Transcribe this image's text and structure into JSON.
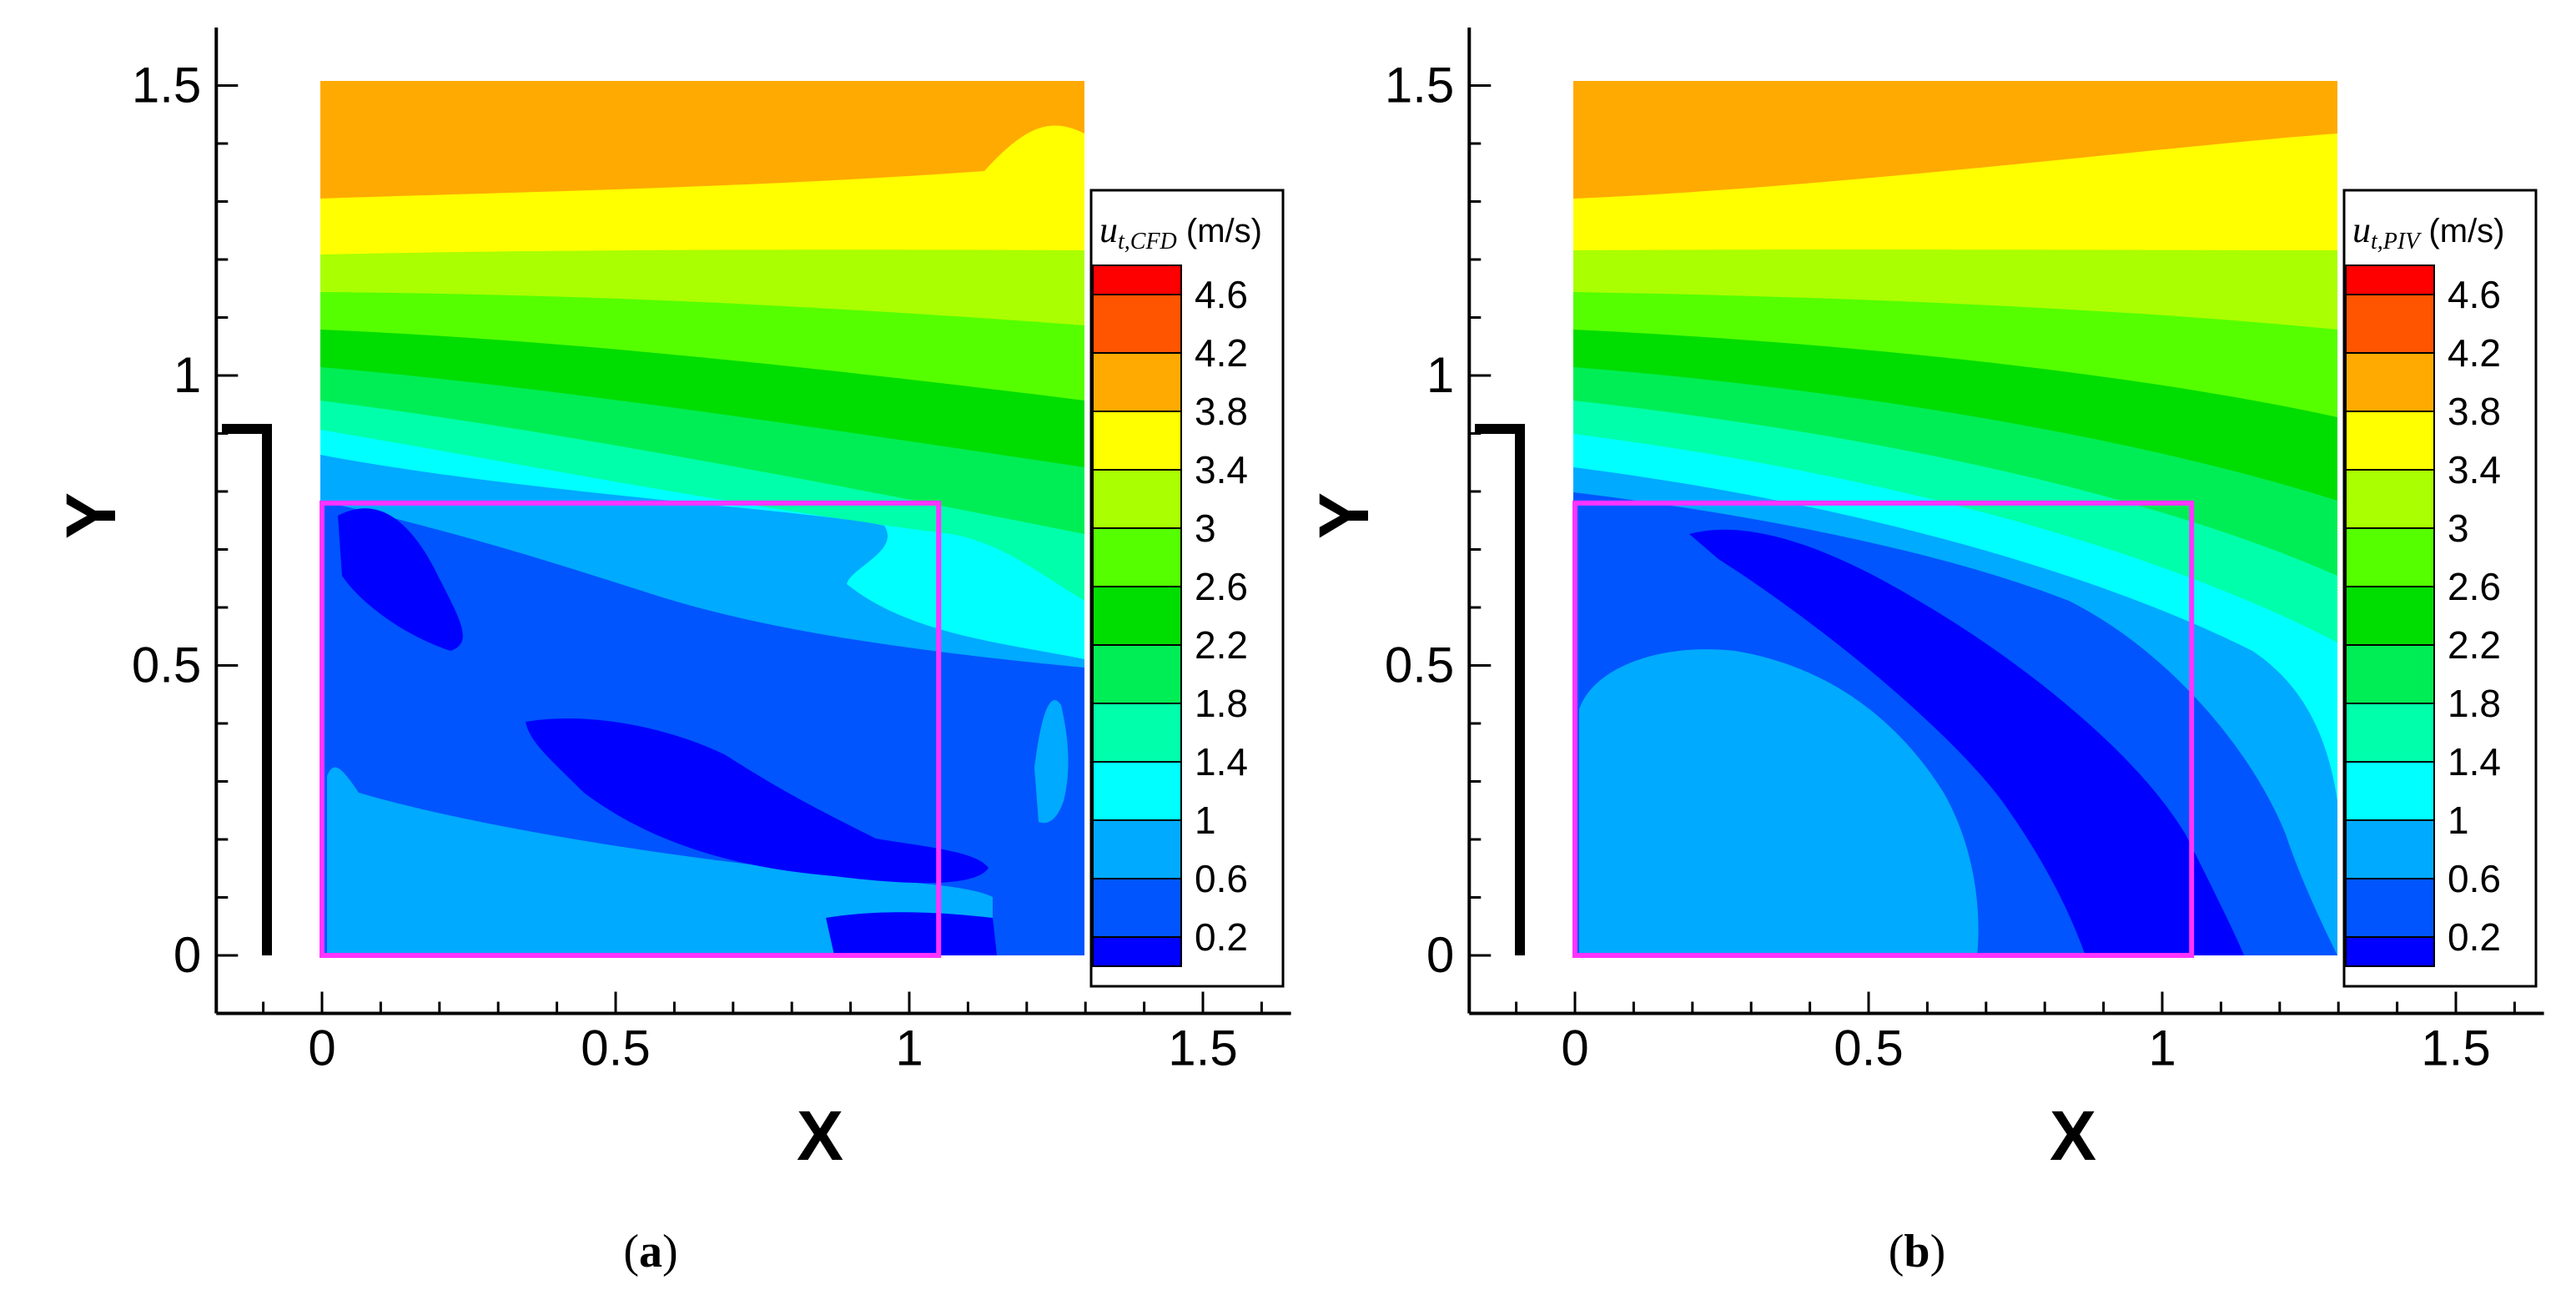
{
  "chart_data": [
    {
      "type": "contour",
      "panel_label": "a",
      "xlabel": "X",
      "ylabel": "Y",
      "xlim": [
        -0.18,
        1.65
      ],
      "ylim": [
        -0.1,
        1.6
      ],
      "x_ticks": [
        "0",
        "0.5",
        "1",
        "1.5"
      ],
      "x_tick_values": [
        0,
        0.5,
        1,
        1.5
      ],
      "y_ticks": [
        "0",
        "0.5",
        "1",
        "1.5"
      ],
      "y_tick_values": [
        0,
        0.5,
        1,
        1.5
      ],
      "domain": {
        "x": [
          0,
          1.31
        ],
        "y": [
          0,
          1.5
        ]
      },
      "highlight_box": {
        "x": [
          0,
          1.05
        ],
        "y": [
          0,
          0.78
        ],
        "color": "#ff33ff"
      },
      "inlet_wall_x": -0.1,
      "inlet_wall_y": [
        0,
        0.91
      ],
      "colorbar": {
        "title_symbol": "u",
        "title_sub": "t,CFD",
        "title_unit": "(m/s)",
        "levels": [
          "4.6",
          "4.2",
          "3.8",
          "3.4",
          "3",
          "2.6",
          "2.2",
          "1.8",
          "1.4",
          "1",
          "0.6",
          "0.2"
        ]
      }
    },
    {
      "type": "contour",
      "panel_label": "b",
      "xlabel": "X",
      "ylabel": "Y",
      "xlim": [
        -0.18,
        1.65
      ],
      "ylim": [
        -0.1,
        1.6
      ],
      "x_ticks": [
        "0",
        "0.5",
        "1",
        "1.5"
      ],
      "x_tick_values": [
        0,
        0.5,
        1,
        1.5
      ],
      "y_ticks": [
        "0",
        "0.5",
        "1",
        "1.5"
      ],
      "y_tick_values": [
        0,
        0.5,
        1,
        1.5
      ],
      "domain": {
        "x": [
          0,
          1.31
        ],
        "y": [
          0,
          1.5
        ]
      },
      "highlight_box": {
        "x": [
          0,
          1.05
        ],
        "y": [
          0,
          0.78
        ],
        "color": "#ff33ff"
      },
      "inlet_wall_x": -0.1,
      "inlet_wall_y": [
        0,
        0.91
      ],
      "colorbar": {
        "title_symbol": "u",
        "title_sub": "t,PIV",
        "title_unit": "(m/s)",
        "levels": [
          "4.6",
          "4.2",
          "3.8",
          "3.4",
          "3",
          "2.6",
          "2.2",
          "1.8",
          "1.4",
          "1",
          "0.6",
          "0.2"
        ]
      }
    }
  ],
  "colors": {
    "bands": [
      "#ff0000",
      "#ff5500",
      "#ffaa00",
      "#ffff00",
      "#aaff00",
      "#55ff00",
      "#00dd00",
      "#00ee55",
      "#00ffaa",
      "#00ffff",
      "#00aaff",
      "#0055ff",
      "#0000ff"
    ],
    "highlight": "#ff33ff"
  }
}
